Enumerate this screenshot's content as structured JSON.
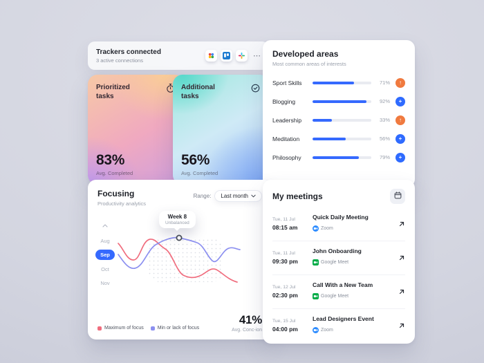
{
  "colors": {
    "background": "#d6d8e2",
    "accent_blue": "#3569fe",
    "badge_orange": "#f07a3f",
    "badge_blue": "#2f6bff",
    "line_max_focus": "#f06d7e",
    "line_min_focus": "#8c90f0"
  },
  "trackers": {
    "title": "Trackers connected",
    "subtitle": "3 active connections",
    "more": "⋯",
    "apps": [
      "google-apps",
      "trello",
      "slack"
    ]
  },
  "task_cards": [
    {
      "title": "Prioritized tasks",
      "icon": "timer",
      "value": "83%",
      "caption": "Avg. Completed"
    },
    {
      "title": "Additional tasks",
      "icon": "check-circle",
      "value": "56%",
      "caption": "Avg. Completed"
    }
  ],
  "developed_areas": {
    "title": "Developed areas",
    "subtitle": "Most common areas of interests",
    "rows": [
      {
        "label": "Sport Skills",
        "percent": 71,
        "percent_label": "71%",
        "badge_color": "#f07a3f",
        "badge_icon": "arrow-up",
        "badge_glyph": "↑"
      },
      {
        "label": "Blogging",
        "percent": 92,
        "percent_label": "92%",
        "badge_color": "#2f6bff",
        "badge_icon": "plus",
        "badge_glyph": "+"
      },
      {
        "label": "Leadership",
        "percent": 33,
        "percent_label": "33%",
        "badge_color": "#f07a3f",
        "badge_icon": "arrow-up",
        "badge_glyph": "↑"
      },
      {
        "label": "Meditation",
        "percent": 56,
        "percent_label": "56%",
        "badge_color": "#2f6bff",
        "badge_icon": "plus",
        "badge_glyph": "+"
      },
      {
        "label": "Philosophy",
        "percent": 79,
        "percent_label": "79%",
        "badge_color": "#2f6bff",
        "badge_icon": "plus",
        "badge_glyph": "+"
      }
    ]
  },
  "focusing": {
    "title": "Focusing",
    "subtitle": "Productivity analytics",
    "range_label": "Range:",
    "range_value": "Last month",
    "months": [
      "Aug",
      "Sep",
      "Oct",
      "Nov"
    ],
    "active_month": "Sep",
    "tooltip_title": "Week 8",
    "tooltip_subtitle": "Unbalanced",
    "legend": [
      {
        "label": "Maximum of focus",
        "color": "#f06d7e"
      },
      {
        "label": "Min or lack of focus",
        "color": "#8c90f0"
      }
    ],
    "avg_value": "41%",
    "avg_caption": "Avg. Conc-ion"
  },
  "meetings": {
    "title": "My meetings",
    "items": [
      {
        "date": "Tue, 11 Jul",
        "time": "08:15 am",
        "name": "Quick Daily Meeting",
        "platform": "Zoom",
        "platform_icon": "zoom"
      },
      {
        "date": "Tue, 11 Jul",
        "time": "09:30 pm",
        "name": "John Onboarding",
        "platform": "Google Meet",
        "platform_icon": "google-meet"
      },
      {
        "date": "Tue, 12 Jul",
        "time": "02:30 pm",
        "name": "Call With a New Team",
        "platform": "Google Meet",
        "platform_icon": "google-meet"
      },
      {
        "date": "Tue, 15 Jul",
        "time": "04:00 pm",
        "name": "Lead Designers Event",
        "platform": "Zoom",
        "platform_icon": "zoom"
      }
    ]
  },
  "chart_data": [
    {
      "type": "bar",
      "title": "Developed areas",
      "orientation": "horizontal",
      "categories": [
        "Sport Skills",
        "Blogging",
        "Leadership",
        "Meditation",
        "Philosophy"
      ],
      "values": [
        71,
        92,
        33,
        56,
        79
      ],
      "unit": "%",
      "xlim": [
        0,
        100
      ]
    },
    {
      "type": "line",
      "title": "Focusing — Productivity analytics",
      "range": "Last month",
      "y_axis_labels": [
        "Aug",
        "Sep",
        "Oct",
        "Nov"
      ],
      "selected_axis_label": "Sep",
      "series": [
        {
          "name": "Maximum of focus",
          "color": "#f06d7e"
        },
        {
          "name": "Min or lack of focus",
          "color": "#8c90f0"
        }
      ],
      "annotation": {
        "point_label": "Week 8",
        "status": "Unbalanced"
      },
      "average_concentration": "41%"
    }
  ]
}
